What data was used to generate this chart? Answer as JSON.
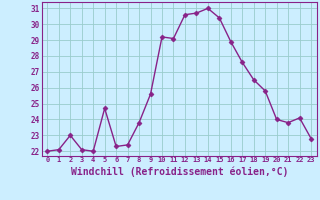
{
  "x": [
    0,
    1,
    2,
    3,
    4,
    5,
    6,
    7,
    8,
    9,
    10,
    11,
    12,
    13,
    14,
    15,
    16,
    17,
    18,
    19,
    20,
    21,
    22,
    23
  ],
  "y": [
    22.0,
    22.1,
    23.0,
    22.1,
    22.0,
    24.7,
    22.3,
    22.4,
    23.8,
    25.6,
    29.2,
    29.1,
    30.6,
    30.7,
    31.0,
    30.4,
    28.9,
    27.6,
    26.5,
    25.8,
    24.0,
    23.8,
    24.1,
    22.8
  ],
  "line_color": "#882288",
  "marker": "D",
  "marker_size": 2.5,
  "line_width": 1.0,
  "bg_color": "#cceeff",
  "grid_color": "#99cccc",
  "tick_color": "#882288",
  "xlabel": "Windchill (Refroidissement éolien,°C)",
  "xlabel_fontsize": 7,
  "ylabel_ticks": [
    22,
    23,
    24,
    25,
    26,
    27,
    28,
    29,
    30,
    31
  ],
  "xtick_labels": [
    "0",
    "1",
    "2",
    "3",
    "4",
    "5",
    "6",
    "7",
    "8",
    "9",
    "10",
    "11",
    "12",
    "13",
    "14",
    "15",
    "16",
    "17",
    "18",
    "19",
    "20",
    "21",
    "22",
    "23"
  ],
  "ylim": [
    21.7,
    31.4
  ],
  "xlim": [
    -0.5,
    23.5
  ]
}
